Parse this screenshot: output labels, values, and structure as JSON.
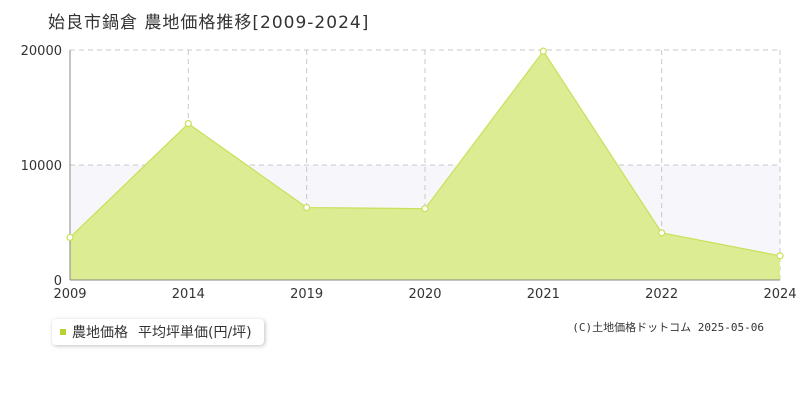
{
  "header": {
    "title": "始良市鍋倉  農地価格推移[2009-2024]"
  },
  "legend": {
    "series_label": "農地価格",
    "unit_label": "平均坪単価(円/坪)"
  },
  "credit": "(C)土地価格ドットコム 2025-05-06",
  "colors": {
    "fill": "#dcec92",
    "line": "#c8e05a",
    "swatch": "#b5d335",
    "band": "#f7f6fa",
    "grid": "#c8c8c8",
    "axis": "#888888"
  },
  "chart_data": {
    "type": "area",
    "x": [
      "2009",
      "2014",
      "2019",
      "2020",
      "2021",
      "2022",
      "2024"
    ],
    "series": [
      {
        "name": "農地価格",
        "values": [
          3700,
          13600,
          6300,
          6200,
          19900,
          4100,
          2100
        ]
      }
    ],
    "ylim": [
      0,
      20000
    ],
    "yticks": [
      "0",
      "10000",
      "20000"
    ],
    "ytick_values": [
      0,
      10000,
      20000
    ],
    "grid": true
  }
}
